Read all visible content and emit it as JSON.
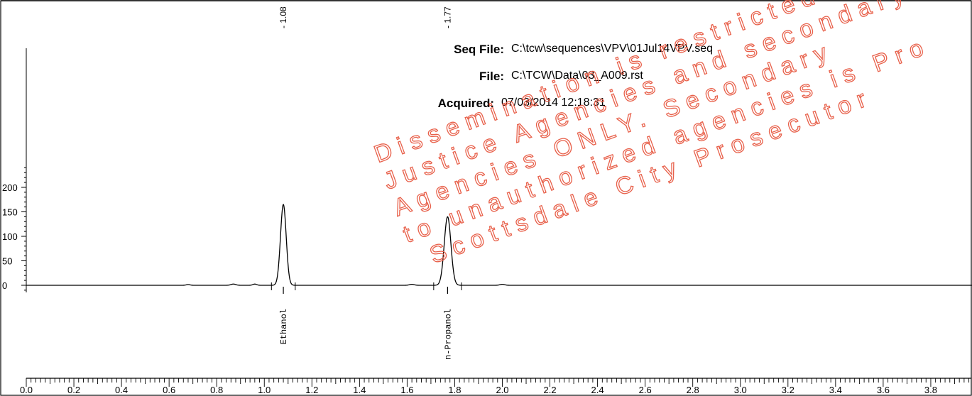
{
  "header": {
    "seq_file_label": "Seq File:",
    "seq_file_value": "C:\\tcw\\sequences\\VPV\\01Jul14VPV.seq",
    "file_label": "File:",
    "file_value": "C:\\TCW\\Data\\03_A009.rst",
    "acquired_label": "Acquired:",
    "acquired_value": "07/03/2014 12:18:31"
  },
  "watermark": {
    "lines": [
      "Dissemination is restricted and a",
      "Justice Agencies and secondary",
      "Agencies ONLY. Secondary",
      "to unauthorized agencies is Pro",
      "Scottsdale City Prosecutor"
    ],
    "color": "#e8604a"
  },
  "chart_data": {
    "type": "line",
    "title": "",
    "xlabel": "",
    "ylabel": "",
    "xlim": [
      0.0,
      4.0
    ],
    "ylim": [
      -190,
      250
    ],
    "x_ticks": [
      0.0,
      0.2,
      0.4,
      0.6,
      0.8,
      1.0,
      1.2,
      1.4,
      1.6,
      1.8,
      2.0,
      2.2,
      2.4,
      2.6,
      2.8,
      3.0,
      3.2,
      3.4,
      3.6,
      3.8
    ],
    "x_tick_labels": [
      "0.0",
      "0.2",
      "0.4",
      "0.6",
      "0.8",
      "1.0",
      "1.2",
      "1.4",
      "1.6",
      "1.8",
      "2.0",
      "2.2",
      "2.4",
      "2.6",
      "2.8",
      "3.0",
      "3.2",
      "3.4",
      "3.6",
      "3.8"
    ],
    "y_ticks": [
      0,
      50,
      100,
      150,
      200
    ],
    "y_tick_labels": [
      "0",
      "50",
      "100",
      "150",
      "200"
    ],
    "baseline": 0,
    "peaks": [
      {
        "name": "Ethanol",
        "retention_time": 1.08,
        "rt_label": "- 1.08",
        "height": 165,
        "width": 0.012
      },
      {
        "name": "n-Propanol",
        "retention_time": 1.77,
        "rt_label": "- 1.77",
        "height": 140,
        "width": 0.014
      }
    ],
    "minor_peaks": [
      {
        "retention_time": 0.68,
        "height": 1.5,
        "width": 0.008
      },
      {
        "retention_time": 0.87,
        "height": 2.5,
        "width": 0.01
      },
      {
        "retention_time": 0.96,
        "height": 2.5,
        "width": 0.008
      },
      {
        "retention_time": 1.62,
        "height": 2,
        "width": 0.01
      },
      {
        "retention_time": 2.0,
        "height": 2,
        "width": 0.01
      }
    ],
    "grid": false,
    "colors": {
      "trace": "#000000",
      "axis": "#000000"
    }
  }
}
